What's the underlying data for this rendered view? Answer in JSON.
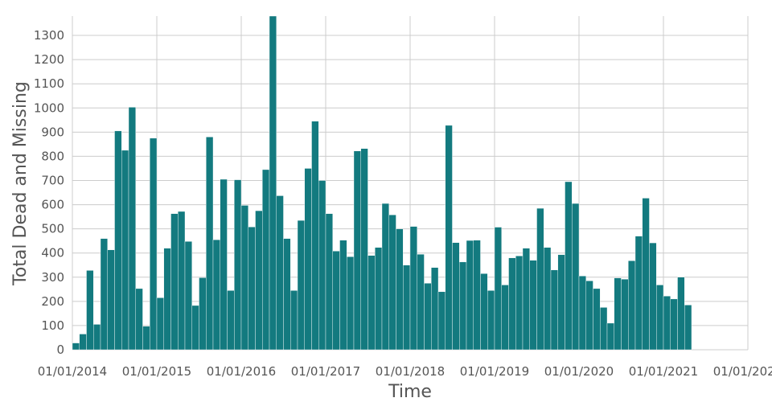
{
  "chart_data": {
    "type": "bar",
    "title": "",
    "xlabel": "Time",
    "ylabel": "Total Dead and Missing",
    "ylim": [
      0,
      1380
    ],
    "y_ticks": [
      0,
      100,
      200,
      300,
      400,
      500,
      600,
      700,
      800,
      900,
      1000,
      1100,
      1200,
      1300
    ],
    "x_tick_labels": [
      "01/01/2014",
      "01/01/2015",
      "01/01/2016",
      "01/01/2017",
      "01/01/2018",
      "01/01/2019",
      "01/01/2020",
      "01/01/2021",
      "01/01/2022"
    ],
    "x_range": [
      "2014-01",
      "2022-01"
    ],
    "grid": true,
    "bar_color": "#137a7f",
    "series": [
      {
        "x": [
          "2014-01",
          "2014-02",
          "2014-03",
          "2014-04",
          "2014-05",
          "2014-06",
          "2014-07",
          "2014-08",
          "2014-09",
          "2014-10",
          "2014-11",
          "2014-12",
          "2015-01",
          "2015-02",
          "2015-03",
          "2015-04",
          "2015-05",
          "2015-06",
          "2015-07",
          "2015-08",
          "2015-09",
          "2015-10",
          "2015-11",
          "2015-12",
          "2016-01",
          "2016-02",
          "2016-03",
          "2016-04",
          "2016-05",
          "2016-06",
          "2016-07",
          "2016-08",
          "2016-09",
          "2016-10",
          "2016-11",
          "2016-12",
          "2017-01",
          "2017-02",
          "2017-03",
          "2017-04",
          "2017-05",
          "2017-06",
          "2017-07",
          "2017-08",
          "2017-09",
          "2017-10",
          "2017-11",
          "2017-12",
          "2018-01",
          "2018-02",
          "2018-03",
          "2018-04",
          "2018-05",
          "2018-06",
          "2018-07",
          "2018-08",
          "2018-09",
          "2018-10",
          "2018-11",
          "2018-12",
          "2019-01",
          "2019-02",
          "2019-03",
          "2019-04",
          "2019-05",
          "2019-06",
          "2019-07",
          "2019-08",
          "2019-09",
          "2019-10",
          "2019-11",
          "2019-12",
          "2020-01",
          "2020-02",
          "2020-03",
          "2020-04",
          "2020-05",
          "2020-06",
          "2020-07",
          "2020-08",
          "2020-09",
          "2020-10",
          "2020-11",
          "2020-12",
          "2021-01",
          "2021-02",
          "2021-03",
          "2021-04",
          "2021-05"
        ],
        "values": [
          28,
          65,
          328,
          105,
          460,
          413,
          905,
          825,
          1003,
          253,
          97,
          875,
          215,
          420,
          563,
          572,
          448,
          183,
          298,
          880,
          455,
          705,
          245,
          703,
          597,
          508,
          575,
          745,
          1380,
          637,
          460,
          245,
          535,
          750,
          945,
          700,
          563,
          408,
          453,
          385,
          822,
          832,
          390,
          423,
          605,
          558,
          500,
          350,
          510,
          395,
          275,
          340,
          240,
          928,
          443,
          363,
          452,
          453,
          315,
          245,
          507,
          268,
          380,
          388,
          420,
          370,
          585,
          423,
          330,
          393,
          695,
          605,
          305,
          285,
          253,
          175,
          110,
          297,
          292,
          368,
          470,
          627,
          442,
          268,
          222,
          210,
          300,
          185,
          0
        ]
      }
    ]
  }
}
